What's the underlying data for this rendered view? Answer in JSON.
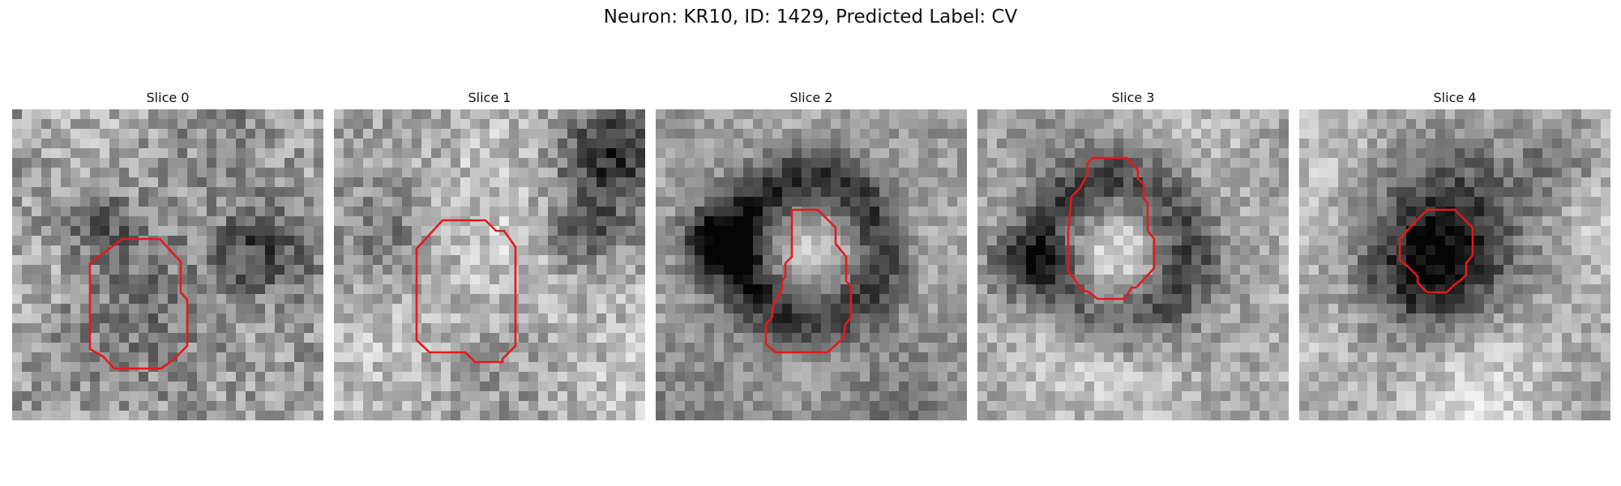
{
  "figure": {
    "suptitle": "Neuron: KR10, ID: 1429, Predicted Label: CV",
    "colormap": "grayscale",
    "contour_color": "#e41a1c"
  },
  "panels": [
    {
      "title": "Slice 0",
      "seed": 11
    },
    {
      "title": "Slice 1",
      "seed": 23
    },
    {
      "title": "Slice 2",
      "seed": 37
    },
    {
      "title": "Slice 3",
      "seed": 41
    },
    {
      "title": "Slice 4",
      "seed": 53
    }
  ]
}
